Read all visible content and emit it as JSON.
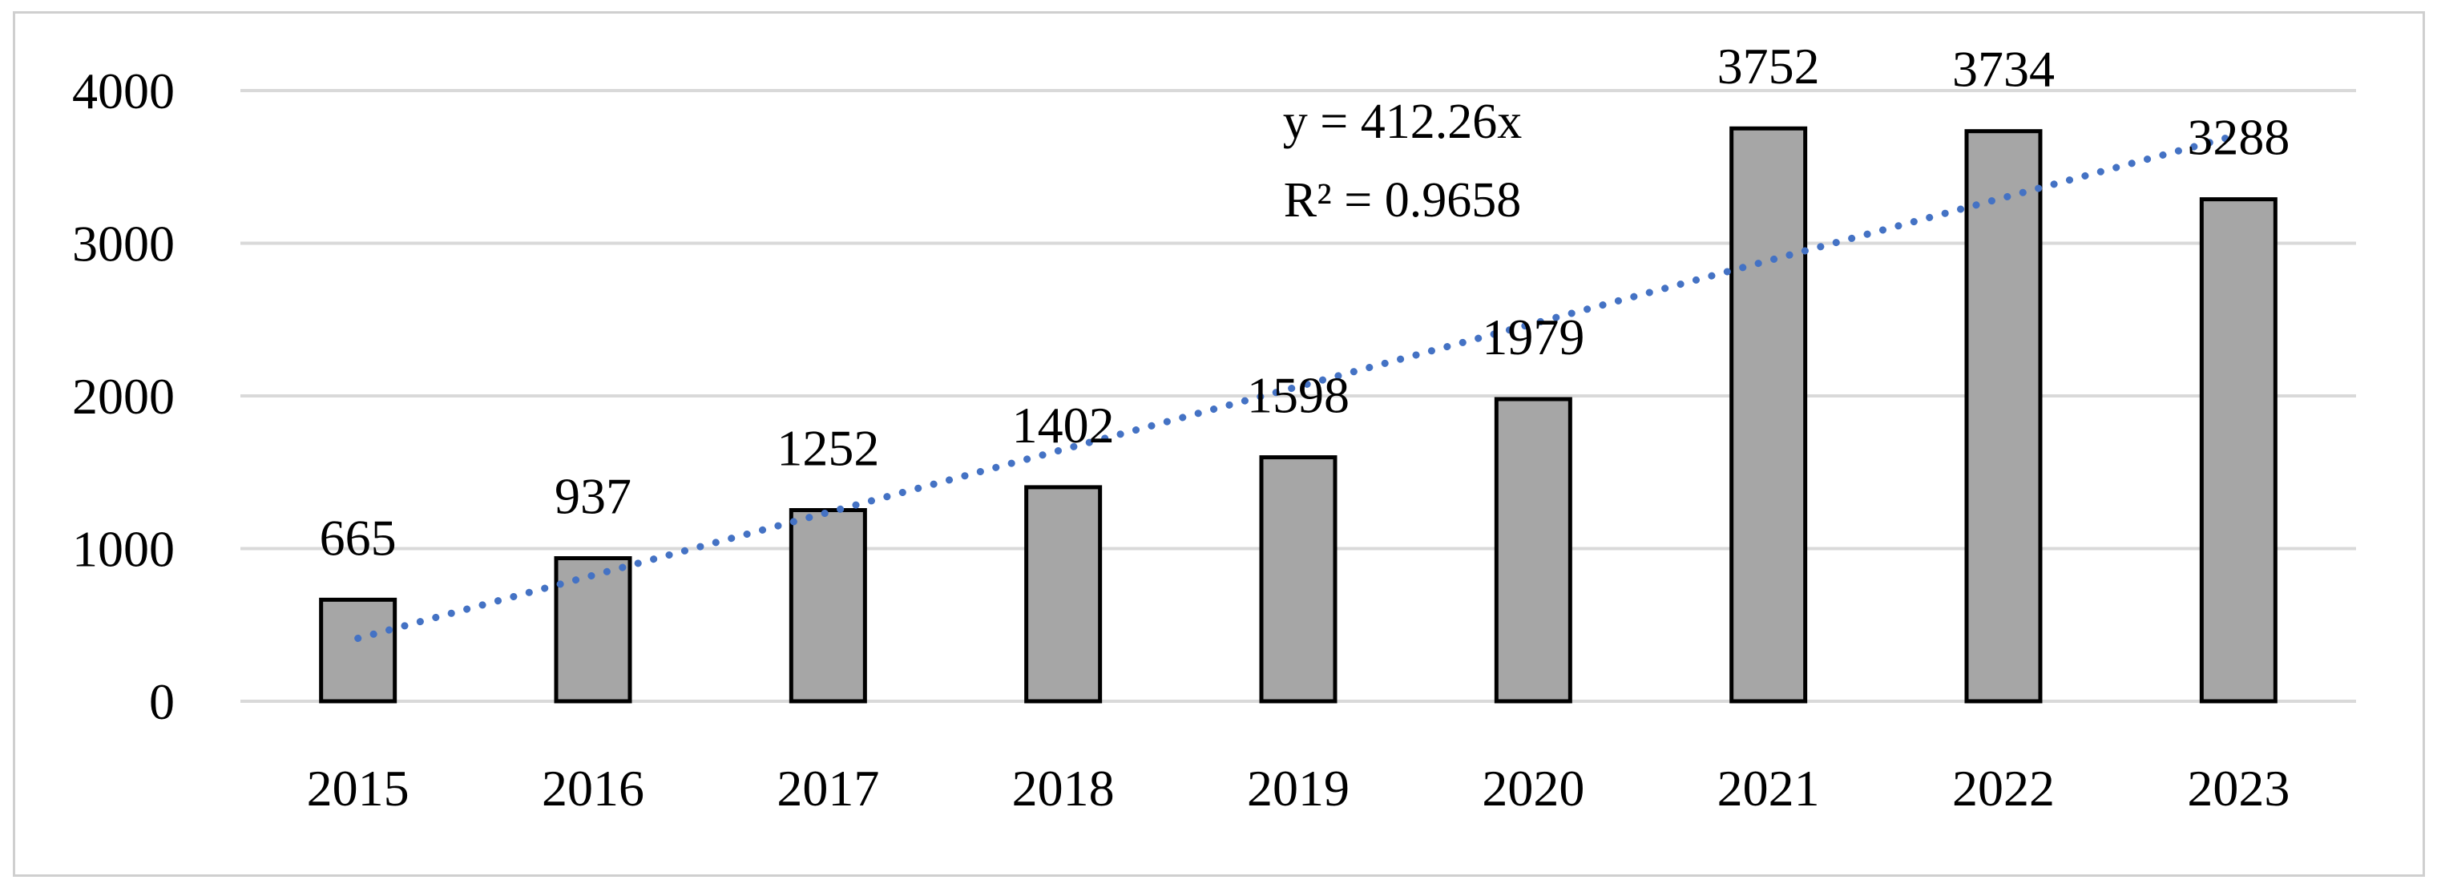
{
  "chart_data": {
    "type": "bar",
    "title": "",
    "xlabel": "",
    "ylabel": "",
    "categories": [
      "2015",
      "2016",
      "2017",
      "2018",
      "2019",
      "2020",
      "2021",
      "2022",
      "2023"
    ],
    "values": [
      665,
      937,
      1252,
      1402,
      1598,
      1979,
      3752,
      3734,
      3288
    ],
    "data_labels": [
      "665",
      "937",
      "1252",
      "1402",
      "1598",
      "1979",
      "3752",
      "3734",
      "3288"
    ],
    "ylim": [
      0,
      4000
    ],
    "y_ticks": [
      0,
      1000,
      2000,
      3000,
      4000
    ],
    "y_tick_labels": [
      "0",
      "1000",
      "2000",
      "3000",
      "4000"
    ],
    "grid": true,
    "legend": "none",
    "trendline": {
      "type": "linear",
      "slope": 412.26,
      "start_value": 412.26,
      "end_value": 3710.34,
      "equation": "y = 412.26x",
      "r_squared": "R² = 0.9658",
      "color": "#4472c4",
      "style": "dotted"
    },
    "colors": {
      "bar_fill": "#a6a6a6",
      "bar_stroke": "#000000",
      "grid": "#d9d9d9",
      "frame": "#cfcfcf"
    }
  }
}
